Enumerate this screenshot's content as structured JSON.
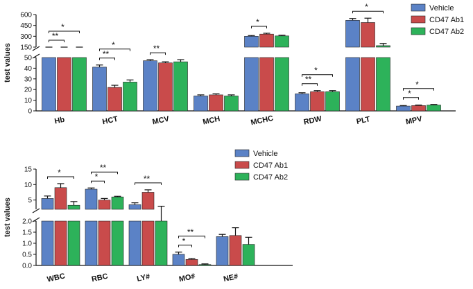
{
  "colors": {
    "Vehicle": "#5b82c6",
    "CD47 Ab1": "#c94b4b",
    "CD47 Ab2": "#2db25a"
  },
  "chart_data": [
    {
      "type": "bar",
      "ylabel": "test values",
      "legend_position": "top-right",
      "grid": false,
      "axis_break": true,
      "categories": [
        "Hb",
        "HCT",
        "MCV",
        "MCH",
        "MCHC",
        "RDW",
        "PLT",
        "MPV"
      ],
      "series": [
        {
          "name": "Vehicle",
          "values": [
            120,
            41,
            47,
            14,
            300,
            16,
            520,
            4.5
          ],
          "errors": [
            5,
            2,
            1,
            1,
            10,
            1,
            25,
            0.5
          ]
        },
        {
          "name": "CD47 Ab1",
          "values": [
            90,
            22,
            45,
            15,
            330,
            18,
            490,
            5.0
          ],
          "errors": [
            5,
            2,
            1,
            1,
            12,
            1,
            60,
            0.5
          ]
        },
        {
          "name": "CD47 Ab2",
          "values": [
            95,
            27,
            46,
            14,
            305,
            18,
            170,
            5.5
          ],
          "errors": [
            5,
            2,
            2,
            1,
            10,
            1,
            30,
            0.5
          ]
        }
      ],
      "lower_axis": {
        "ylim": [
          0,
          50
        ],
        "ticks": [
          "0",
          "10",
          "20",
          "30",
          "40",
          "50"
        ]
      },
      "upper_axis": {
        "ylim": [
          150,
          600
        ],
        "ticks": [
          "150",
          "300",
          "450",
          "600"
        ]
      },
      "significance": [
        {
          "category": "Hb",
          "from": 0,
          "to": 1,
          "label": "**"
        },
        {
          "category": "Hb",
          "from": 0,
          "to": 2,
          "label": "*"
        },
        {
          "category": "HCT",
          "from": 0,
          "to": 1,
          "label": "**"
        },
        {
          "category": "HCT",
          "from": 0,
          "to": 2,
          "label": "*"
        },
        {
          "category": "MCV",
          "from": 0,
          "to": 1,
          "label": "**"
        },
        {
          "category": "MCHC",
          "from": 0,
          "to": 1,
          "label": "*"
        },
        {
          "category": "RDW",
          "from": 0,
          "to": 1,
          "label": "**"
        },
        {
          "category": "RDW",
          "from": 0,
          "to": 2,
          "label": "*"
        },
        {
          "category": "PLT",
          "from": 0,
          "to": 2,
          "label": "*"
        },
        {
          "category": "MPV",
          "from": 0,
          "to": 1,
          "label": "*"
        },
        {
          "category": "MPV",
          "from": 0,
          "to": 2,
          "label": "*"
        }
      ]
    },
    {
      "type": "bar",
      "ylabel": "test values",
      "legend_position": "top-center",
      "grid": false,
      "axis_break": true,
      "categories": [
        "WBC",
        "RBC",
        "LY#",
        "MO#",
        "NE#"
      ],
      "series": [
        {
          "name": "Vehicle",
          "values": [
            5.5,
            8.5,
            3.5,
            0.5,
            1.3
          ],
          "errors": [
            0.8,
            0.4,
            0.6,
            0.1,
            0.1
          ]
        },
        {
          "name": "CD47 Ab1",
          "values": [
            9.0,
            5.0,
            7.5,
            0.27,
            1.35
          ],
          "errors": [
            1.3,
            0.5,
            0.8,
            0.04,
            0.35
          ]
        },
        {
          "name": "CD47 Ab2",
          "values": [
            3.3,
            6.0,
            2.0,
            0.04,
            0.95
          ],
          "errors": [
            1.2,
            0.2,
            1.0,
            0.03,
            0.32
          ]
        }
      ],
      "lower_axis": {
        "ylim": [
          0,
          2.0
        ],
        "ticks": [
          "0.0",
          "0.5",
          "1.0",
          "1.5",
          "2.0"
        ]
      },
      "upper_axis": {
        "ylim": [
          2,
          15
        ],
        "ticks": [
          "5",
          "10",
          "15"
        ]
      },
      "significance": [
        {
          "category": "WBC",
          "from": 0,
          "to": 2,
          "label": "*"
        },
        {
          "category": "RBC",
          "from": 0,
          "to": 1,
          "label": "*"
        },
        {
          "category": "RBC",
          "from": 0,
          "to": 2,
          "label": "**"
        },
        {
          "category": "LY#",
          "from": 0,
          "to": 2,
          "label": "**"
        },
        {
          "category": "MO#",
          "from": 0,
          "to": 1,
          "label": "*"
        },
        {
          "category": "MO#",
          "from": 0,
          "to": 2,
          "label": "**"
        }
      ]
    }
  ]
}
